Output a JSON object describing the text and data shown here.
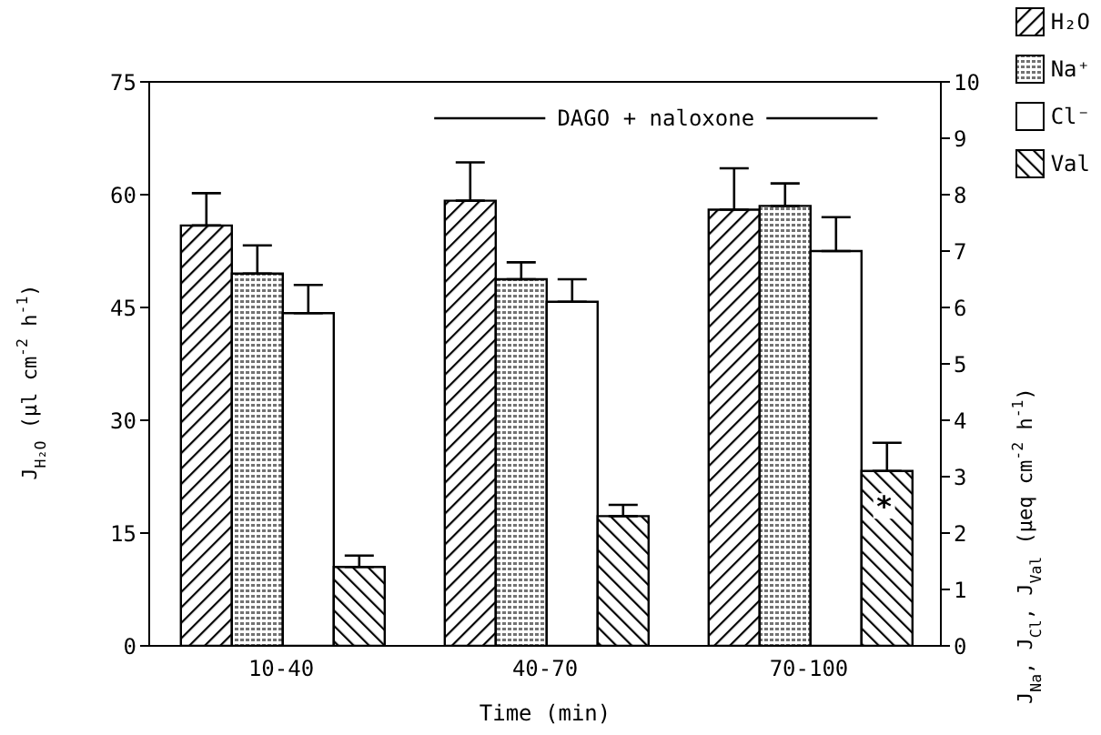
{
  "chart_data": {
    "type": "bar",
    "categories": [
      "10-40",
      "40-70",
      "70-100"
    ],
    "series": [
      {
        "name": "H₂O",
        "color": "#000000",
        "values": [
          55.9,
          59.2,
          58
        ],
        "errors": [
          [
            55.9,
            60.2
          ],
          [
            59.2,
            64.3
          ],
          [
            58,
            63.5
          ]
        ]
      },
      {
        "name": "Na⁺",
        "color": "#000000",
        "axis": "y2",
        "values": [
          6.6,
          6.5,
          7.8
        ],
        "errors": [
          [
            6.6,
            7.1
          ],
          [
            6.5,
            6.8
          ],
          [
            7.8,
            8.2
          ]
        ]
      },
      {
        "name": "Cl⁻",
        "color": "#ffffff",
        "axis": "y2",
        "values": [
          5.9,
          6.1,
          7.0
        ],
        "errors": [
          [
            5.9,
            6.4
          ],
          [
            6.1,
            6.5
          ],
          [
            7.0,
            7.6
          ]
        ]
      },
      {
        "name": "Val",
        "color": "#000000",
        "axis": "y2",
        "values": [
          1.4,
          2.3,
          3.1
        ],
        "errors": [
          [
            1.4,
            1.6
          ],
          [
            2.3,
            2.5
          ],
          [
            3.1,
            3.6
          ]
        ]
      }
    ],
    "xlabel": "Time (min)",
    "ylabel": "J$_{H₂O}$  (µl cm$^{-2}$ h$^{-1}$)",
    "y2label": "J$_{Na}$, J$_{Cl}$, J$_{Val}$  (µeq cm$^{-2}$ h$^{-1}$)",
    "ylim": [
      0,
      75
    ],
    "yticks": [
      0,
      15,
      30,
      45,
      60,
      75
    ],
    "y2lim": [
      0,
      10
    ],
    "y2ticks": [
      0,
      1,
      2,
      3,
      4,
      5,
      6,
      7,
      8,
      9,
      10
    ],
    "annotations": [
      "DAGO + naloxone",
      {
        "text": "*",
        "x": "70-100"
      }
    ],
    "legend": "top right"
  }
}
